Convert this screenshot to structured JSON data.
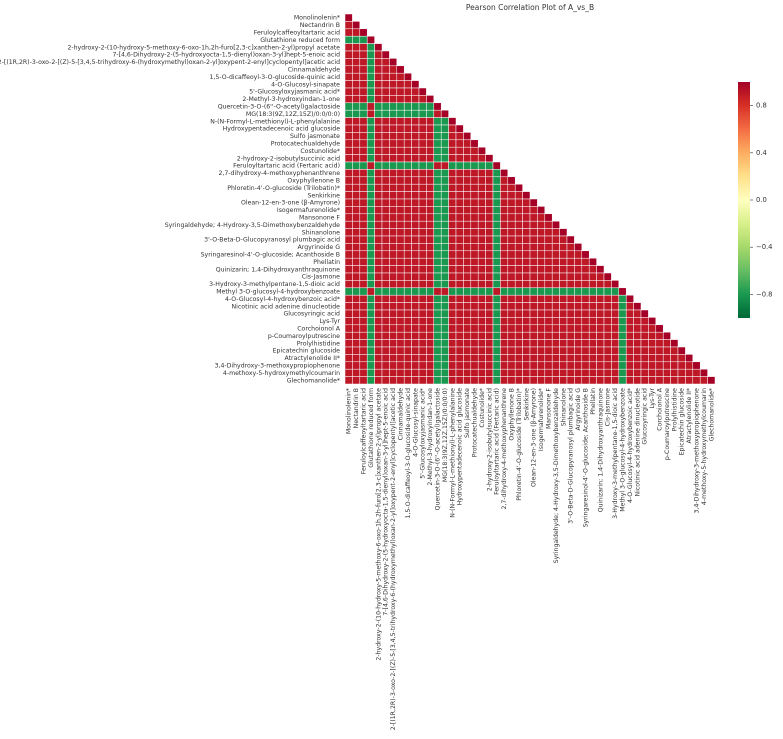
{
  "chart_data": {
    "type": "heatmap",
    "title": "Pearson Correlation Plot of A_vs_B",
    "cmap": "RdYlGn_r",
    "labels": [
      "Monolinolenin*",
      "Nectandrin B",
      "Feruloylcaffeoyltartaric acid",
      "Glutathione reduced form",
      "2-hydroxy-2-(10-hydroxy-5-methoxy-6-oxo-1h,2h-furo[2,3-c]xanthen-2-yl)propyl acetate",
      "7-[4,6-Dihydroxy-2-(5-hydroxyocta-1,5-dienyl)oxan-3-yl]hept-5-enoic acid",
      "2-[(1R,2R)-3-oxo-2-[(Z)-5-[3,4,5-trihydroxy-6-(hydroxymethyl)oxan-2-yl]oxypent-2-enyl]cyclopentyl]acetic acid",
      "Cinnamaldehyde",
      "1,5-O-dicaffeoyl-3-O-glucoside-quinic acid",
      "4-O-Glucosyl-sinapate",
      "5'-Glucosyloxyjasmanic acid*",
      "2-Methyl-3-hydroxyindan-1-one",
      "Quercetin-3-O-(6''-O-acetyl)galactoside",
      "MG(18:3(9Z,12Z,15Z)/0:0/0:0)",
      "N-(N-Formyl-L-methionyl)-L-phenylalanine",
      "Hydroxypentadecenoic acid glucoside",
      "Sulfo jasmonate",
      "Protocatechualdehyde",
      "Costunolide*",
      "2-hydroxy-2-isobutylsuccinic acid",
      "Feruloyltartaric acid (Fertaric acid)",
      "2,7-dihydroxy-4-methoxyphenanthrene",
      "Oxyphyllenone B",
      "Phloretin-4'-O-glucoside (Trilobatin)*",
      "Senkirkine",
      "Olean-12-en-3-one (β-Amyrone)",
      "Isogermafurenolide*",
      "Mansonone F",
      "Syringaldehyde; 4-Hydroxy-3,5-Dimethoxybenzaldehyde",
      "Shinanolone",
      "3'-O-Beta-D-Glucopyranosyl plumbagic acid",
      "Argyrinoide G",
      "Syringaresinol-4'-O-glucoside; Acanthoside B",
      "Phellatin",
      "Quinizarin; 1,4-Dihydroxyanthraquinone",
      "Cis-Jasmone",
      "3-Hydroxy-3-methylpentane-1,5-dioic acid",
      "Methyl 3-O-glucosyl-4-hydroxybenzoate",
      "4-O-Glucosyl-4-hydroxybenzoic acid*",
      "Nicotinic acid adenine dinucleotide",
      "Glucosyringic acid",
      "Lys-Tyr",
      "Corchoionol A",
      "p-Coumaroylputrescine",
      "Prolylhistidine",
      "Epicatechin glucoside",
      "Atractylenolide II*",
      "3,4-Dihydroxy-3-methoxypropiophenone",
      "4-methoxy-5-hydroxymethylcoumarin",
      "Glechomanolide*"
    ],
    "matrix": [
      [
        1
      ],
      [
        0.9,
        1
      ],
      [
        0.9,
        0.9,
        1
      ],
      [
        -0.8,
        -0.8,
        -0.8,
        1
      ],
      [
        0.9,
        0.9,
        0.9,
        -0.8,
        1
      ],
      [
        0.9,
        0.9,
        0.9,
        -0.8,
        0.9,
        1
      ],
      [
        0.9,
        0.9,
        0.9,
        -0.8,
        0.9,
        0.9,
        1
      ],
      [
        0.9,
        0.9,
        0.9,
        -0.8,
        0.9,
        0.9,
        0.9,
        1
      ],
      [
        0.9,
        0.9,
        0.9,
        -0.8,
        0.9,
        0.9,
        0.9,
        0.9,
        1
      ],
      [
        0.9,
        0.9,
        0.9,
        -0.8,
        0.9,
        0.9,
        0.9,
        0.9,
        0.9,
        1
      ],
      [
        0.9,
        0.9,
        0.9,
        -0.8,
        0.9,
        0.9,
        0.9,
        0.9,
        0.9,
        0.9,
        1
      ],
      [
        0.9,
        0.9,
        0.9,
        -0.8,
        0.9,
        0.9,
        0.9,
        0.9,
        0.9,
        0.9,
        0.9,
        1
      ],
      [
        -0.8,
        -0.8,
        -0.8,
        0.9,
        -0.8,
        -0.8,
        -0.8,
        -0.8,
        -0.8,
        -0.8,
        -0.8,
        -0.8,
        1
      ],
      [
        -0.8,
        -0.8,
        -0.8,
        0.9,
        -0.8,
        -0.8,
        -0.8,
        -0.8,
        -0.8,
        -0.8,
        -0.8,
        -0.8,
        0.9,
        1
      ],
      [
        0.9,
        0.9,
        0.9,
        -0.8,
        0.9,
        0.9,
        0.9,
        0.9,
        0.9,
        0.9,
        0.9,
        0.9,
        -0.8,
        -0.8,
        1
      ],
      [
        0.9,
        0.9,
        0.9,
        -0.8,
        0.9,
        0.9,
        0.9,
        0.9,
        0.9,
        0.9,
        0.9,
        0.9,
        -0.8,
        -0.8,
        0.9,
        1
      ],
      [
        0.9,
        0.9,
        0.9,
        -0.8,
        0.9,
        0.9,
        0.9,
        0.9,
        0.9,
        0.9,
        0.9,
        0.9,
        -0.8,
        -0.8,
        0.9,
        0.9,
        1
      ],
      [
        0.9,
        0.9,
        0.9,
        -0.8,
        0.9,
        0.9,
        0.9,
        0.9,
        0.9,
        0.9,
        0.9,
        0.9,
        -0.8,
        -0.8,
        0.9,
        0.9,
        0.9,
        1
      ],
      [
        0.9,
        0.9,
        0.9,
        -0.8,
        0.9,
        0.9,
        0.9,
        0.9,
        0.9,
        0.9,
        0.9,
        0.9,
        -0.8,
        -0.8,
        0.9,
        0.9,
        0.9,
        0.9,
        1
      ],
      [
        0.9,
        0.9,
        0.9,
        -0.8,
        0.9,
        0.9,
        0.9,
        0.9,
        0.9,
        0.9,
        0.9,
        0.9,
        -0.8,
        -0.8,
        0.9,
        0.9,
        0.9,
        0.9,
        0.9,
        1
      ],
      [
        -0.8,
        -0.8,
        -0.8,
        0.9,
        -0.8,
        -0.8,
        -0.8,
        -0.8,
        -0.8,
        -0.8,
        -0.8,
        -0.8,
        0.9,
        0.9,
        -0.8,
        -0.8,
        -0.8,
        -0.8,
        -0.8,
        -0.8,
        1
      ],
      [
        0.9,
        0.9,
        0.9,
        -0.8,
        0.9,
        0.9,
        0.9,
        0.9,
        0.9,
        0.9,
        0.9,
        0.9,
        -0.8,
        -0.8,
        0.9,
        0.9,
        0.9,
        0.9,
        0.9,
        0.9,
        -0.8,
        1
      ],
      [
        0.9,
        0.9,
        0.9,
        -0.8,
        0.9,
        0.9,
        0.9,
        0.9,
        0.9,
        0.9,
        0.9,
        0.9,
        -0.8,
        -0.8,
        0.9,
        0.9,
        0.9,
        0.9,
        0.9,
        0.9,
        -0.8,
        0.9,
        1
      ],
      [
        0.9,
        0.9,
        0.9,
        -0.8,
        0.9,
        0.9,
        0.9,
        0.9,
        0.9,
        0.9,
        0.9,
        0.9,
        -0.8,
        -0.8,
        0.9,
        0.9,
        0.9,
        0.9,
        0.9,
        0.9,
        -0.8,
        0.9,
        0.9,
        1
      ],
      [
        0.9,
        0.9,
        0.9,
        -0.8,
        0.9,
        0.9,
        0.9,
        0.9,
        0.9,
        0.9,
        0.9,
        0.9,
        -0.8,
        -0.8,
        0.9,
        0.9,
        0.9,
        0.9,
        0.9,
        0.9,
        -0.8,
        0.9,
        0.9,
        0.9,
        1
      ],
      [
        0.9,
        0.9,
        0.9,
        -0.8,
        0.9,
        0.9,
        0.9,
        0.9,
        0.9,
        0.9,
        0.9,
        0.9,
        -0.8,
        -0.8,
        0.9,
        0.9,
        0.9,
        0.9,
        0.9,
        0.9,
        -0.8,
        0.9,
        0.9,
        0.9,
        0.9,
        1
      ],
      [
        0.9,
        0.9,
        0.9,
        -0.8,
        0.9,
        0.9,
        0.9,
        0.9,
        0.9,
        0.9,
        0.9,
        0.9,
        -0.8,
        -0.8,
        0.9,
        0.9,
        0.9,
        0.9,
        0.9,
        0.9,
        -0.8,
        0.9,
        0.9,
        0.9,
        0.9,
        0.9,
        1
      ],
      [
        0.9,
        0.9,
        0.9,
        -0.8,
        0.9,
        0.9,
        0.9,
        0.9,
        0.9,
        0.9,
        0.9,
        0.9,
        -0.8,
        -0.8,
        0.9,
        0.9,
        0.9,
        0.9,
        0.9,
        0.9,
        -0.8,
        0.9,
        0.9,
        0.9,
        0.9,
        0.9,
        0.9,
        1
      ],
      [
        0.9,
        0.9,
        0.9,
        -0.8,
        0.9,
        0.9,
        0.9,
        0.9,
        0.9,
        0.9,
        0.9,
        0.9,
        -0.8,
        -0.8,
        0.9,
        0.9,
        0.9,
        0.9,
        0.9,
        0.9,
        -0.8,
        0.9,
        0.9,
        0.9,
        0.9,
        0.9,
        0.9,
        0.9,
        1
      ],
      [
        0.9,
        0.9,
        0.9,
        -0.8,
        0.9,
        0.9,
        0.9,
        0.9,
        0.9,
        0.9,
        0.9,
        0.9,
        -0.8,
        -0.8,
        0.9,
        0.9,
        0.9,
        0.9,
        0.9,
        0.9,
        -0.8,
        0.9,
        0.9,
        0.9,
        0.9,
        0.9,
        0.9,
        0.9,
        0.9,
        1
      ],
      [
        0.9,
        0.9,
        0.9,
        -0.8,
        0.9,
        0.9,
        0.9,
        0.9,
        0.9,
        0.9,
        0.9,
        0.9,
        -0.8,
        -0.8,
        0.9,
        0.9,
        0.9,
        0.9,
        0.9,
        0.9,
        -0.8,
        0.9,
        0.9,
        0.9,
        0.9,
        0.9,
        0.9,
        0.9,
        0.9,
        0.9,
        1
      ],
      [
        0.9,
        0.9,
        0.9,
        -0.8,
        0.9,
        0.9,
        0.9,
        0.9,
        0.9,
        0.9,
        0.9,
        0.9,
        -0.8,
        -0.8,
        0.9,
        0.9,
        0.9,
        0.9,
        0.9,
        0.9,
        -0.8,
        0.9,
        0.9,
        0.9,
        0.9,
        0.9,
        0.9,
        0.9,
        0.9,
        0.9,
        0.9,
        1
      ],
      [
        0.9,
        0.9,
        0.9,
        -0.8,
        0.9,
        0.9,
        0.9,
        0.9,
        0.9,
        0.9,
        0.9,
        0.9,
        -0.8,
        -0.8,
        0.9,
        0.9,
        0.9,
        0.9,
        0.9,
        0.9,
        -0.8,
        0.9,
        0.9,
        0.9,
        0.9,
        0.9,
        0.9,
        0.9,
        0.9,
        0.9,
        0.9,
        0.9,
        1
      ],
      [
        0.9,
        0.9,
        0.9,
        -0.8,
        0.9,
        0.9,
        0.9,
        0.9,
        0.9,
        0.9,
        0.9,
        0.9,
        -0.8,
        -0.8,
        0.9,
        0.9,
        0.9,
        0.9,
        0.9,
        0.9,
        -0.8,
        0.9,
        0.9,
        0.9,
        0.9,
        0.9,
        0.9,
        0.9,
        0.9,
        0.9,
        0.9,
        0.9,
        0.9,
        1
      ],
      [
        0.9,
        0.9,
        0.9,
        -0.8,
        0.9,
        0.9,
        0.9,
        0.9,
        0.9,
        0.9,
        0.9,
        0.9,
        -0.8,
        -0.8,
        0.9,
        0.9,
        0.9,
        0.9,
        0.9,
        0.9,
        -0.8,
        0.9,
        0.9,
        0.9,
        0.9,
        0.9,
        0.9,
        0.9,
        0.9,
        0.9,
        0.9,
        0.9,
        0.9,
        0.9,
        1
      ],
      [
        0.9,
        0.9,
        0.9,
        -0.8,
        0.9,
        0.9,
        0.9,
        0.9,
        0.9,
        0.9,
        0.9,
        0.9,
        -0.8,
        -0.8,
        0.9,
        0.9,
        0.9,
        0.9,
        0.9,
        0.9,
        -0.8,
        0.9,
        0.9,
        0.9,
        0.9,
        0.9,
        0.9,
        0.9,
        0.9,
        0.9,
        0.9,
        0.9,
        0.9,
        0.9,
        0.9,
        1
      ],
      [
        0.9,
        0.9,
        0.9,
        -0.8,
        0.9,
        0.9,
        0.9,
        0.9,
        0.9,
        0.9,
        0.9,
        0.9,
        -0.8,
        -0.8,
        0.9,
        0.9,
        0.9,
        0.9,
        0.9,
        0.9,
        -0.8,
        0.9,
        0.9,
        0.9,
        0.9,
        0.9,
        0.9,
        0.9,
        0.9,
        0.9,
        0.9,
        0.9,
        0.9,
        0.9,
        0.9,
        0.9,
        1
      ],
      [
        -0.8,
        -0.8,
        -0.8,
        0.9,
        -0.8,
        -0.8,
        -0.8,
        -0.8,
        -0.8,
        -0.8,
        -0.8,
        -0.8,
        0.9,
        0.9,
        -0.8,
        -0.8,
        -0.8,
        -0.8,
        -0.8,
        -0.8,
        0.9,
        -0.8,
        -0.8,
        -0.8,
        -0.8,
        -0.8,
        -0.8,
        -0.8,
        -0.8,
        -0.8,
        -0.8,
        -0.8,
        -0.8,
        -0.8,
        -0.8,
        -0.8,
        -0.8,
        1
      ],
      [
        0.9,
        0.9,
        0.9,
        -0.8,
        0.9,
        0.9,
        0.9,
        0.9,
        0.9,
        0.9,
        0.9,
        0.9,
        -0.8,
        -0.8,
        0.9,
        0.9,
        0.9,
        0.9,
        0.9,
        0.9,
        -0.8,
        0.9,
        0.9,
        0.9,
        0.9,
        0.9,
        0.9,
        0.9,
        0.9,
        0.9,
        0.9,
        0.9,
        0.9,
        0.9,
        0.9,
        0.9,
        0.9,
        -0.8,
        1
      ],
      [
        0.9,
        0.9,
        0.9,
        -0.8,
        0.9,
        0.9,
        0.9,
        0.9,
        0.9,
        0.9,
        0.9,
        0.9,
        -0.8,
        -0.8,
        0.9,
        0.9,
        0.9,
        0.9,
        0.9,
        0.9,
        -0.8,
        0.9,
        0.9,
        0.9,
        0.9,
        0.9,
        0.9,
        0.9,
        0.9,
        0.9,
        0.9,
        0.9,
        0.9,
        0.9,
        0.9,
        0.9,
        0.9,
        -0.8,
        0.9,
        1
      ],
      [
        0.9,
        0.9,
        0.9,
        -0.8,
        0.9,
        0.9,
        0.9,
        0.9,
        0.9,
        0.9,
        0.9,
        0.9,
        -0.8,
        -0.8,
        0.9,
        0.9,
        0.9,
        0.9,
        0.9,
        0.9,
        -0.8,
        0.9,
        0.9,
        0.9,
        0.9,
        0.9,
        0.9,
        0.9,
        0.9,
        0.9,
        0.9,
        0.9,
        0.9,
        0.9,
        0.9,
        0.9,
        0.9,
        -0.8,
        0.9,
        0.9,
        1
      ],
      [
        0.9,
        0.9,
        0.9,
        -0.8,
        0.9,
        0.9,
        0.9,
        0.9,
        0.9,
        0.9,
        0.9,
        0.9,
        -0.8,
        -0.8,
        0.9,
        0.9,
        0.9,
        0.9,
        0.9,
        0.9,
        -0.8,
        0.9,
        0.9,
        0.9,
        0.9,
        0.9,
        0.9,
        0.9,
        0.9,
        0.9,
        0.9,
        0.9,
        0.9,
        0.9,
        0.9,
        0.9,
        0.9,
        -0.8,
        0.9,
        0.9,
        0.9,
        1
      ],
      [
        0.9,
        0.9,
        0.9,
        -0.8,
        0.9,
        0.9,
        0.9,
        0.9,
        0.9,
        0.9,
        0.9,
        0.9,
        -0.8,
        -0.8,
        0.9,
        0.9,
        0.9,
        0.9,
        0.9,
        0.9,
        -0.8,
        0.9,
        0.9,
        0.9,
        0.9,
        0.9,
        0.9,
        0.9,
        0.9,
        0.9,
        0.9,
        0.9,
        0.9,
        0.9,
        0.9,
        0.9,
        0.9,
        -0.8,
        0.9,
        0.9,
        0.9,
        0.9,
        1
      ],
      [
        0.9,
        0.9,
        0.9,
        -0.8,
        0.9,
        0.9,
        0.9,
        0.9,
        0.9,
        0.9,
        0.9,
        0.9,
        -0.8,
        -0.8,
        0.9,
        0.9,
        0.9,
        0.9,
        0.9,
        0.9,
        -0.8,
        0.9,
        0.9,
        0.9,
        0.9,
        0.9,
        0.9,
        0.9,
        0.9,
        0.9,
        0.9,
        0.9,
        0.9,
        0.9,
        0.9,
        0.9,
        0.9,
        -0.8,
        0.9,
        0.9,
        0.9,
        0.9,
        0.9,
        1
      ],
      [
        0.9,
        0.9,
        0.9,
        -0.8,
        0.9,
        0.9,
        0.9,
        0.9,
        0.9,
        0.9,
        0.9,
        0.9,
        -0.8,
        -0.8,
        0.9,
        0.9,
        0.9,
        0.9,
        0.9,
        0.9,
        -0.8,
        0.9,
        0.9,
        0.9,
        0.9,
        0.9,
        0.9,
        0.9,
        0.9,
        0.9,
        0.9,
        0.9,
        0.9,
        0.9,
        0.9,
        0.9,
        0.9,
        -0.8,
        0.9,
        0.9,
        0.9,
        0.9,
        0.9,
        0.9,
        1
      ],
      [
        0.9,
        0.9,
        0.9,
        -0.8,
        0.9,
        0.9,
        0.9,
        0.9,
        0.9,
        0.9,
        0.9,
        0.9,
        -0.8,
        -0.8,
        0.9,
        0.9,
        0.9,
        0.9,
        0.9,
        0.9,
        -0.8,
        0.9,
        0.9,
        0.9,
        0.9,
        0.9,
        0.9,
        0.9,
        0.9,
        0.9,
        0.9,
        0.9,
        0.9,
        0.9,
        0.9,
        0.9,
        0.9,
        -0.8,
        0.9,
        0.9,
        0.9,
        0.9,
        0.9,
        0.9,
        0.9,
        1
      ],
      [
        0.9,
        0.9,
        0.9,
        -0.8,
        0.9,
        0.9,
        0.9,
        0.9,
        0.9,
        0.9,
        0.9,
        0.9,
        -0.8,
        -0.8,
        0.9,
        0.9,
        0.9,
        0.9,
        0.9,
        0.9,
        -0.8,
        0.9,
        0.9,
        0.9,
        0.9,
        0.9,
        0.9,
        0.9,
        0.9,
        0.9,
        0.9,
        0.9,
        0.9,
        0.9,
        0.9,
        0.9,
        0.9,
        -0.8,
        0.9,
        0.9,
        0.9,
        0.9,
        0.9,
        0.9,
        0.9,
        0.9,
        1
      ],
      [
        0.9,
        0.9,
        0.9,
        -0.8,
        0.9,
        0.9,
        0.9,
        0.9,
        0.9,
        0.9,
        0.9,
        0.9,
        -0.8,
        -0.8,
        0.9,
        0.9,
        0.9,
        0.9,
        0.9,
        0.9,
        -0.8,
        0.9,
        0.9,
        0.9,
        0.9,
        0.9,
        0.9,
        0.9,
        0.9,
        0.9,
        0.9,
        0.9,
        0.9,
        0.9,
        0.9,
        0.9,
        0.9,
        -0.8,
        0.9,
        0.9,
        0.9,
        0.9,
        0.9,
        0.9,
        0.9,
        0.9,
        0.9,
        1
      ],
      [
        0.9,
        0.9,
        0.9,
        -0.8,
        0.9,
        0.9,
        0.9,
        0.9,
        0.9,
        0.9,
        0.9,
        0.9,
        -0.8,
        -0.8,
        0.9,
        0.9,
        0.9,
        0.9,
        0.9,
        0.9,
        -0.8,
        0.9,
        0.9,
        0.9,
        0.9,
        0.9,
        0.9,
        0.9,
        0.9,
        0.9,
        0.9,
        0.9,
        0.9,
        0.9,
        0.9,
        0.9,
        0.9,
        -0.8,
        0.9,
        0.9,
        0.9,
        0.9,
        0.9,
        0.9,
        0.9,
        0.9,
        0.9,
        0.9,
        1
      ],
      [
        0.9,
        0.9,
        0.9,
        -0.8,
        0.9,
        0.9,
        0.9,
        0.9,
        0.9,
        0.9,
        0.9,
        0.9,
        -0.8,
        -0.8,
        0.9,
        0.9,
        0.9,
        0.9,
        0.9,
        0.9,
        -0.8,
        0.9,
        0.9,
        0.9,
        0.9,
        0.9,
        0.9,
        0.9,
        0.9,
        0.9,
        0.9,
        0.9,
        0.9,
        0.9,
        0.9,
        0.9,
        0.9,
        -0.8,
        0.9,
        0.9,
        0.9,
        0.9,
        0.9,
        0.9,
        0.9,
        0.9,
        0.9,
        0.9,
        0.9,
        1
      ]
    ],
    "zlim": [
      -1,
      1
    ],
    "zticks": [
      0.8,
      0.4,
      {
        "value": 0,
        "label": "0.0"
      },
      {
        "value": -0.4,
        "label": "−0.4"
      },
      {
        "value": -0.8,
        "label": "−0.8"
      }
    ]
  }
}
